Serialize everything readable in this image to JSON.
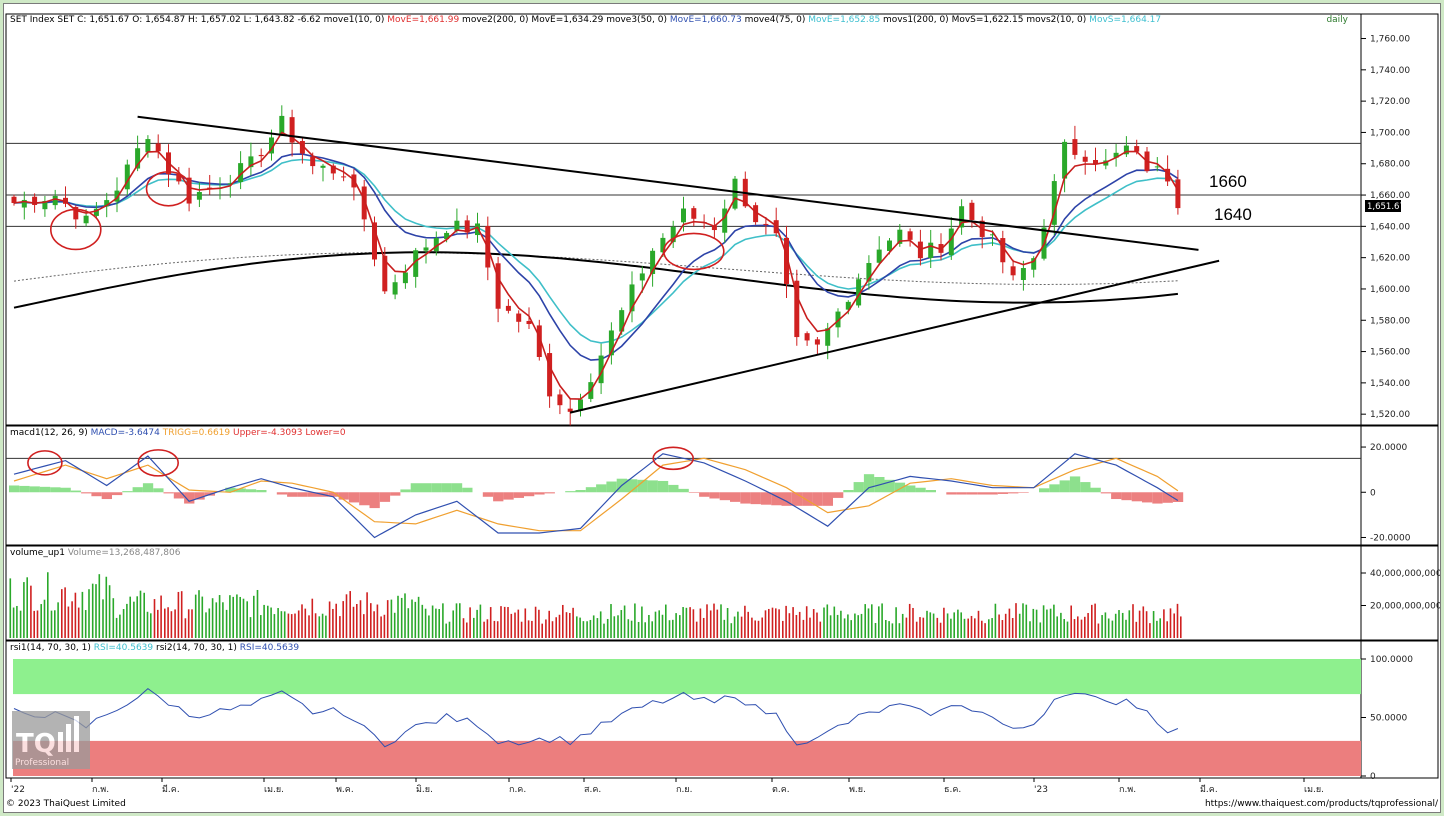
{
  "panels": {
    "price": {
      "header": [
        {
          "text": "SET Index SET C: 1,651.67 O: 1,654.87 H: 1,657.02 L: 1,643.82 -6.62",
          "color": "#000000"
        },
        {
          "text": "move1(10, 0)",
          "color": "#000000"
        },
        {
          "text": "MovE=1,661.99",
          "color": "#e03030"
        },
        {
          "text": "move2(200, 0)",
          "color": "#000000"
        },
        {
          "text": "MovE=1,634.29",
          "color": "#000000"
        },
        {
          "text": "move3(50, 0)",
          "color": "#000000"
        },
        {
          "text": "MovE=1,660.73",
          "color": "#3050b0"
        },
        {
          "text": "move4(75, 0)",
          "color": "#000000"
        },
        {
          "text": "MovE=1,652.85",
          "color": "#40c0d0"
        },
        {
          "text": "movs1(200, 0)",
          "color": "#000000"
        },
        {
          "text": "MovS=1,622.15",
          "color": "#000000"
        },
        {
          "text": "movs2(10, 0)",
          "color": "#000000"
        },
        {
          "text": "MovS=1,664.17",
          "color": "#40c0d0"
        }
      ],
      "timeframe": "daily",
      "current_price_tag": "1,651.67",
      "annotations": [
        "1660",
        "1640"
      ]
    },
    "macd": {
      "header": [
        {
          "text": "macd1(12, 26, 9)",
          "color": "#000000"
        },
        {
          "text": "MACD=-3.6474",
          "color": "#3050b0"
        },
        {
          "text": "TRIGG=0.6619",
          "color": "#f0a030"
        },
        {
          "text": "Upper=-4.3093",
          "color": "#e03030"
        },
        {
          "text": "Lower=0",
          "color": "#e03030"
        }
      ]
    },
    "volume": {
      "header": [
        {
          "text": "volume_up1",
          "color": "#000000"
        },
        {
          "text": "Volume=13,268,487,806",
          "color": "#888888"
        }
      ]
    },
    "rsi": {
      "header": [
        {
          "text": "rsi1(14, 70, 30, 1)",
          "color": "#000000"
        },
        {
          "text": "RSI=40.5639",
          "color": "#40c0d0"
        },
        {
          "text": "rsi2(14, 70, 30, 1)",
          "color": "#000000"
        },
        {
          "text": "RSI=40.5639",
          "color": "#3050b0"
        }
      ],
      "watermark_line1": "TQ",
      "watermark_line2": "Professional"
    }
  },
  "footer": {
    "copyright": "© 2023 ThaiQuest Limited",
    "url": "https://www.thaiquest.com/products/tqprofessional/"
  },
  "colors": {
    "up_candle": "#2aa82a",
    "down_candle": "#d02020",
    "ma10": "#c81e1e",
    "ma50": "#2d43a8",
    "ma75": "#3fbfc8",
    "ma200": "#000000",
    "macd_line": "#3050b0",
    "trigger_line": "#f0a030",
    "hist_pos": "#8de08d",
    "hist_neg": "#ec8080",
    "rsi_overbought_zone": "#8ef08e",
    "rsi_oversold_zone": "#ec7e7e",
    "circle": "#d02020"
  },
  "chart_data": [
    {
      "type": "candlestick",
      "title": "SET Index",
      "ylim": [
        1515,
        1768
      ],
      "y_ticks": [
        "1,520.00",
        "1,540.00",
        "1,560.00",
        "1,580.00",
        "1,600.00",
        "1,620.00",
        "1,640.00",
        "1,660.00",
        "1,680.00",
        "1,700.00",
        "1,720.00",
        "1,740.00",
        "1,760.00"
      ],
      "x_ticks": [
        "'22",
        "ก.พ.",
        "มี.ค.",
        "เม.ย.",
        "พ.ค.",
        "มิ.ย.",
        "ก.ค.",
        "ส.ค.",
        "ก.ย.",
        "ต.ค.",
        "พ.ย.",
        "ธ.ค.",
        "'23",
        "ก.พ.",
        "มี.ค.",
        "เม.ย."
      ],
      "horizontal_lines": [
        1693,
        1660,
        1640
      ],
      "trendline_upper": [
        [
          12,
          1710
        ],
        [
          115,
          1625
        ]
      ],
      "trendline_lower": [
        [
          54,
          1521
        ],
        [
          117,
          1618
        ]
      ],
      "close_anchors": [
        [
          0,
          1655
        ],
        [
          4,
          1660
        ],
        [
          7,
          1643
        ],
        [
          10,
          1665
        ],
        [
          13,
          1700
        ],
        [
          15,
          1676
        ],
        [
          17,
          1658
        ],
        [
          20,
          1668
        ],
        [
          23,
          1680
        ],
        [
          26,
          1706
        ],
        [
          29,
          1678
        ],
        [
          32,
          1675
        ],
        [
          34,
          1645
        ],
        [
          36,
          1598
        ],
        [
          39,
          1622
        ],
        [
          42,
          1640
        ],
        [
          45,
          1638
        ],
        [
          47,
          1590
        ],
        [
          50,
          1575
        ],
        [
          52,
          1535
        ],
        [
          54,
          1522
        ],
        [
          56,
          1545
        ],
        [
          59,
          1585
        ],
        [
          62,
          1625
        ],
        [
          65,
          1648
        ],
        [
          68,
          1640
        ],
        [
          70,
          1668
        ],
        [
          72,
          1645
        ],
        [
          74,
          1632
        ],
        [
          76,
          1565
        ],
        [
          78,
          1562
        ],
        [
          80,
          1585
        ],
        [
          82,
          1608
        ],
        [
          84,
          1628
        ],
        [
          86,
          1636
        ],
        [
          88,
          1622
        ],
        [
          90,
          1628
        ],
        [
          92,
          1652
        ],
        [
          95,
          1630
        ],
        [
          97,
          1605
        ],
        [
          99,
          1620
        ],
        [
          101,
          1666
        ],
        [
          102,
          1690
        ],
        [
          104,
          1686
        ],
        [
          106,
          1680
        ],
        [
          108,
          1690
        ],
        [
          110,
          1678
        ],
        [
          112,
          1672
        ],
        [
          113,
          1651.67
        ]
      ],
      "last_index": 113
    },
    {
      "type": "line",
      "title": "MACD",
      "ylim": [
        -22,
        24
      ],
      "y_ticks": [
        "20.0000",
        "0",
        "-20.0000"
      ],
      "series": [
        {
          "name": "MACD",
          "values_anchors": [
            [
              0,
              8
            ],
            [
              5,
              14
            ],
            [
              9,
              3
            ],
            [
              13,
              16
            ],
            [
              17,
              -4
            ],
            [
              21,
              2
            ],
            [
              24,
              6
            ],
            [
              27,
              2
            ],
            [
              31,
              -2
            ],
            [
              35,
              -20
            ],
            [
              39,
              -10
            ],
            [
              43,
              -4
            ],
            [
              47,
              -18
            ],
            [
              51,
              -18
            ],
            [
              55,
              -16
            ],
            [
              59,
              3
            ],
            [
              63,
              17
            ],
            [
              67,
              13
            ],
            [
              71,
              5
            ],
            [
              75,
              -4
            ],
            [
              79,
              -15
            ],
            [
              83,
              2
            ],
            [
              87,
              7
            ],
            [
              91,
              5
            ],
            [
              95,
              2
            ],
            [
              99,
              2
            ],
            [
              103,
              17
            ],
            [
              107,
              12
            ],
            [
              111,
              2
            ],
            [
              113,
              -3.6474
            ]
          ]
        },
        {
          "name": "TRIGG",
          "values_anchors": [
            [
              0,
              5
            ],
            [
              5,
              12
            ],
            [
              9,
              6
            ],
            [
              13,
              12
            ],
            [
              17,
              1
            ],
            [
              21,
              0
            ],
            [
              24,
              5
            ],
            [
              27,
              4
            ],
            [
              31,
              0
            ],
            [
              35,
              -13
            ],
            [
              39,
              -14
            ],
            [
              43,
              -8
            ],
            [
              47,
              -14
            ],
            [
              51,
              -17
            ],
            [
              55,
              -17
            ],
            [
              59,
              -3
            ],
            [
              63,
              12
            ],
            [
              67,
              15
            ],
            [
              71,
              10
            ],
            [
              75,
              2
            ],
            [
              79,
              -9
            ],
            [
              83,
              -6
            ],
            [
              87,
              4
            ],
            [
              91,
              6
            ],
            [
              95,
              3
            ],
            [
              99,
              2
            ],
            [
              103,
              10
            ],
            [
              107,
              15
            ],
            [
              111,
              7
            ],
            [
              113,
              0.6619
            ]
          ]
        }
      ],
      "reference_line": 15
    },
    {
      "type": "bar",
      "title": "Volume",
      "ylim": [
        0,
        48000000000
      ],
      "y_ticks": [
        "20,000,000,000",
        "40,000,000,000"
      ],
      "last_value": 13268487806
    },
    {
      "type": "line",
      "title": "RSI",
      "ylim": [
        0,
        100
      ],
      "y_ticks": [
        "100.0000",
        "50.0000",
        "0"
      ],
      "zones": {
        "overbought": [
          70,
          100
        ],
        "oversold": [
          0,
          30
        ]
      },
      "rsi_anchors": [
        [
          0,
          55
        ],
        [
          4,
          52
        ],
        [
          7,
          42
        ],
        [
          10,
          58
        ],
        [
          13,
          72
        ],
        [
          15,
          63
        ],
        [
          17,
          52
        ],
        [
          20,
          55
        ],
        [
          23,
          60
        ],
        [
          26,
          70
        ],
        [
          29,
          55
        ],
        [
          32,
          55
        ],
        [
          34,
          40
        ],
        [
          36,
          28
        ],
        [
          39,
          42
        ],
        [
          42,
          50
        ],
        [
          45,
          45
        ],
        [
          47,
          30
        ],
        [
          50,
          30
        ],
        [
          52,
          32
        ],
        [
          54,
          30
        ],
        [
          56,
          38
        ],
        [
          59,
          52
        ],
        [
          62,
          62
        ],
        [
          65,
          68
        ],
        [
          68,
          62
        ],
        [
          70,
          70
        ],
        [
          72,
          58
        ],
        [
          74,
          52
        ],
        [
          76,
          30
        ],
        [
          78,
          31
        ],
        [
          80,
          42
        ],
        [
          82,
          50
        ],
        [
          84,
          56
        ],
        [
          86,
          60
        ],
        [
          88,
          54
        ],
        [
          90,
          55
        ],
        [
          92,
          62
        ],
        [
          95,
          50
        ],
        [
          97,
          38
        ],
        [
          99,
          45
        ],
        [
          101,
          66
        ],
        [
          102,
          72
        ],
        [
          104,
          68
        ],
        [
          106,
          62
        ],
        [
          108,
          66
        ],
        [
          110,
          55
        ],
        [
          112,
          40
        ],
        [
          113,
          40.5639
        ]
      ]
    }
  ]
}
